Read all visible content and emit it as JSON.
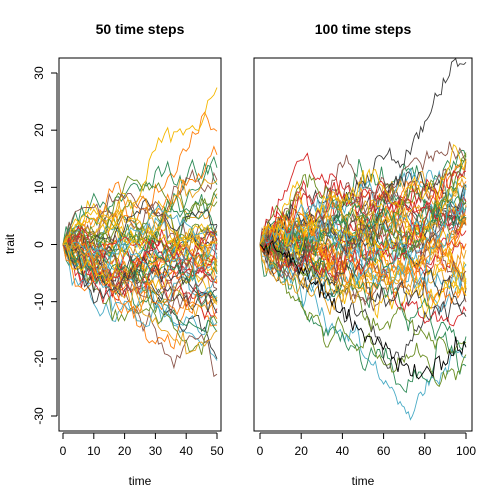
{
  "chart_data": [
    {
      "type": "line",
      "title": "50 time steps",
      "xlabel": "time",
      "ylabel": "trait",
      "xlim": [
        0,
        50
      ],
      "ylim": [
        -30,
        30
      ],
      "xticks": [
        0,
        10,
        20,
        30,
        40,
        50
      ],
      "yticks": [
        -30,
        -20,
        -10,
        0,
        10,
        20,
        30
      ],
      "n_series": 60,
      "spread_per_sqrt_step": 1.3,
      "colors": [
        "#e6a01a",
        "#2e8b57",
        "#d62728",
        "#4bacc6",
        "#8c564b",
        "#f5b800",
        "#6b8e23",
        "#ff7f0e",
        "#3c3c3c"
      ],
      "highlight": {
        "min_value": -18.5,
        "at_time": 43,
        "end_value": -15
      }
    },
    {
      "type": "line",
      "title": "100 time steps",
      "xlabel": "time",
      "ylabel": "",
      "xlim": [
        0,
        100
      ],
      "ylim": [
        -30,
        30
      ],
      "xticks": [
        0,
        20,
        40,
        60,
        80,
        100
      ],
      "yticks": [],
      "n_series": 60,
      "spread_per_sqrt_step": 1.15,
      "colors": [
        "#e6a01a",
        "#2e8b57",
        "#d62728",
        "#4bacc6",
        "#8c564b",
        "#f5b800",
        "#6b8e23",
        "#ff7f0e",
        "#3c3c3c"
      ],
      "highlight": {
        "min_value": -23.5,
        "at_time": 77,
        "end_value": -18,
        "color": "#000000"
      }
    }
  ]
}
